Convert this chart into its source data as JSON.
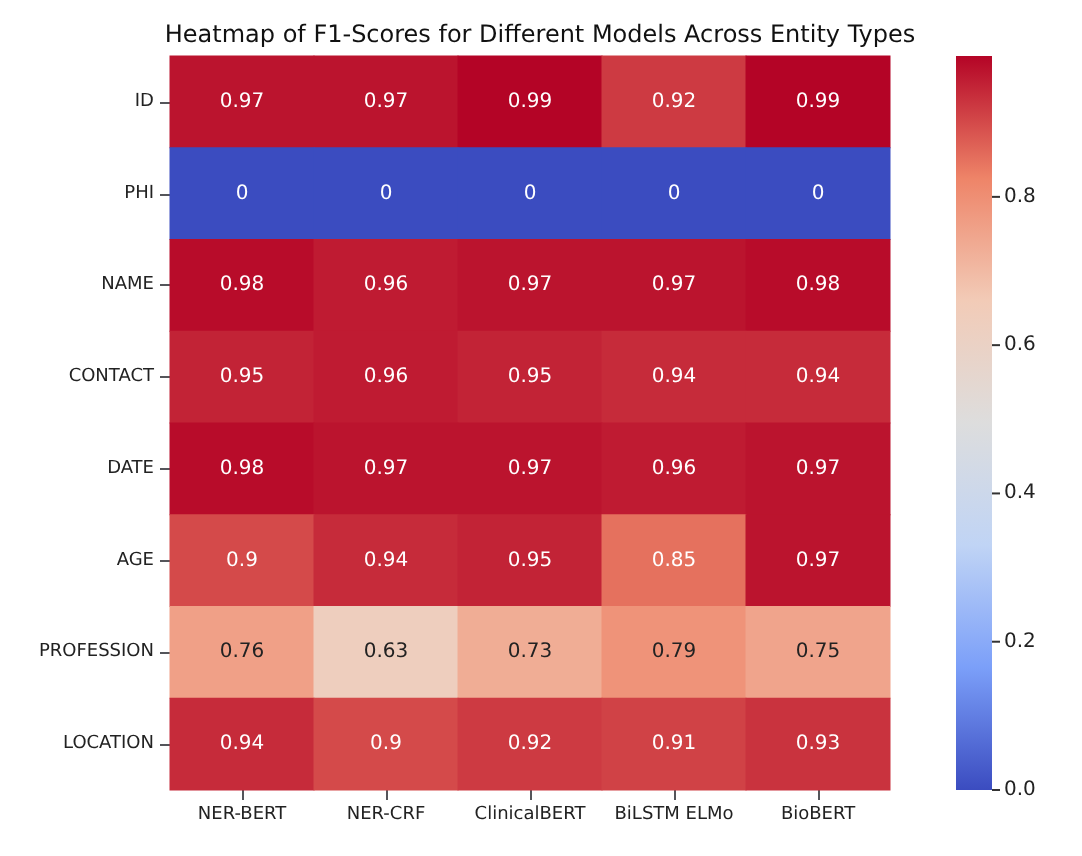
{
  "chart_data": {
    "type": "heatmap",
    "title": "Heatmap of F1-Scores for Different Models Across Entity Types",
    "categories": [
      "NER-BERT",
      "NER-CRF",
      "ClinicalBERT",
      "BiLSTM ELMo",
      "BioBERT"
    ],
    "y_categories": [
      "ID",
      "PHI",
      "NAME",
      "CONTACT",
      "DATE",
      "AGE",
      "PROFESSION",
      "LOCATION"
    ],
    "cells": [
      [
        0.97,
        0.97,
        0.99,
        0.92,
        0.99
      ],
      [
        0,
        0,
        0,
        0,
        0
      ],
      [
        0.98,
        0.96,
        0.97,
        0.97,
        0.98
      ],
      [
        0.95,
        0.96,
        0.95,
        0.94,
        0.94
      ],
      [
        0.98,
        0.97,
        0.97,
        0.96,
        0.97
      ],
      [
        0.9,
        0.94,
        0.95,
        0.85,
        0.97
      ],
      [
        0.76,
        0.63,
        0.73,
        0.79,
        0.75
      ],
      [
        0.94,
        0.9,
        0.92,
        0.91,
        0.93
      ]
    ],
    "clim": [
      0,
      0.99
    ],
    "cticks": [
      {
        "value": 0,
        "label": "0.0"
      },
      {
        "value": 0.2,
        "label": "0.2"
      },
      {
        "value": 0.4,
        "label": "0.4"
      },
      {
        "value": 0.6,
        "label": "0.6"
      },
      {
        "value": 0.8,
        "label": "0.8"
      }
    ],
    "data_labels": true
  }
}
